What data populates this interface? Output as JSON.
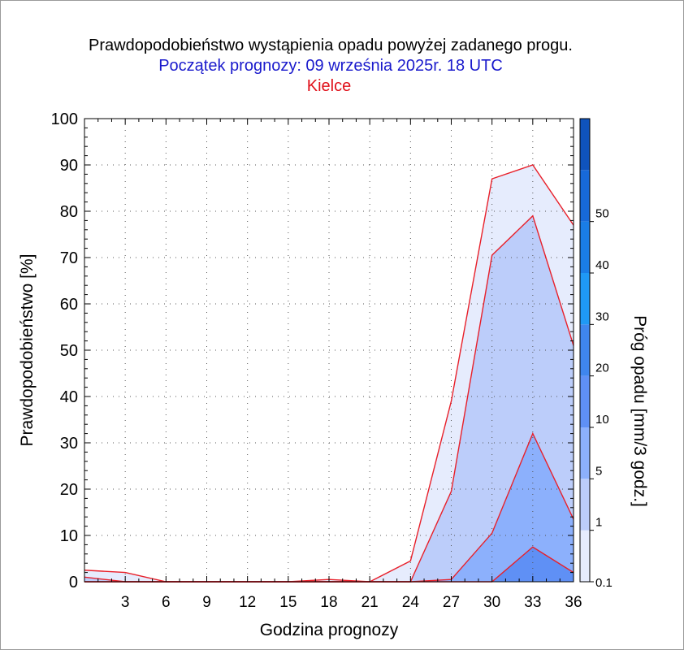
{
  "chart_data": {
    "type": "area",
    "title": "Prawdopodobieństwo wystąpienia opadu powyżej zadanego progu.",
    "subtitle": "Początek prognozy: 09 września 2025r. 18 UTC",
    "location": "Kielce",
    "xlabel": "Godzina prognozy",
    "ylabel": "Prawdopodobieństwo [%]",
    "xlim": [
      0,
      36
    ],
    "ylim": [
      0,
      100
    ],
    "x_ticks": [
      3,
      6,
      9,
      12,
      15,
      18,
      21,
      24,
      27,
      30,
      33,
      36
    ],
    "y_ticks": [
      0,
      10,
      20,
      30,
      40,
      50,
      60,
      70,
      80,
      90,
      100
    ],
    "grid": true,
    "x": [
      0,
      3,
      6,
      9,
      12,
      15,
      18,
      21,
      24,
      27,
      30,
      33,
      36
    ],
    "series": [
      {
        "threshold": "0.1",
        "color": "#e6ecfd",
        "values": [
          2.5,
          2,
          0,
          0,
          0,
          0,
          0.5,
          0,
          4.5,
          39,
          87,
          90,
          77
        ]
      },
      {
        "threshold": "1",
        "color": "#bccdfa",
        "values": [
          1,
          0,
          0,
          0,
          0,
          0,
          0,
          0,
          0,
          19.5,
          70.5,
          79,
          51
        ]
      },
      {
        "threshold": "5",
        "color": "#8cb0fc",
        "values": [
          0,
          0,
          0,
          0,
          0,
          0,
          0,
          0,
          0,
          0.5,
          10.5,
          32,
          13.5
        ]
      },
      {
        "threshold": "10",
        "color": "#5f90f5",
        "values": [
          0,
          0,
          0,
          0,
          0,
          0,
          0,
          0,
          0,
          0,
          0,
          7.5,
          2
        ]
      }
    ],
    "colorbar": {
      "label": "Próg opadu [mm/3 godz.]",
      "ticks": [
        "0.1",
        "1",
        "5",
        "10",
        "20",
        "30",
        "40",
        "50"
      ],
      "colors": [
        "#e6ecfd",
        "#bccdfa",
        "#8cb0fc",
        "#5f90f5",
        "#3f86ee",
        "#1f99f5",
        "#1a7de6",
        "#1769d9",
        "#0f53bc"
      ]
    }
  }
}
